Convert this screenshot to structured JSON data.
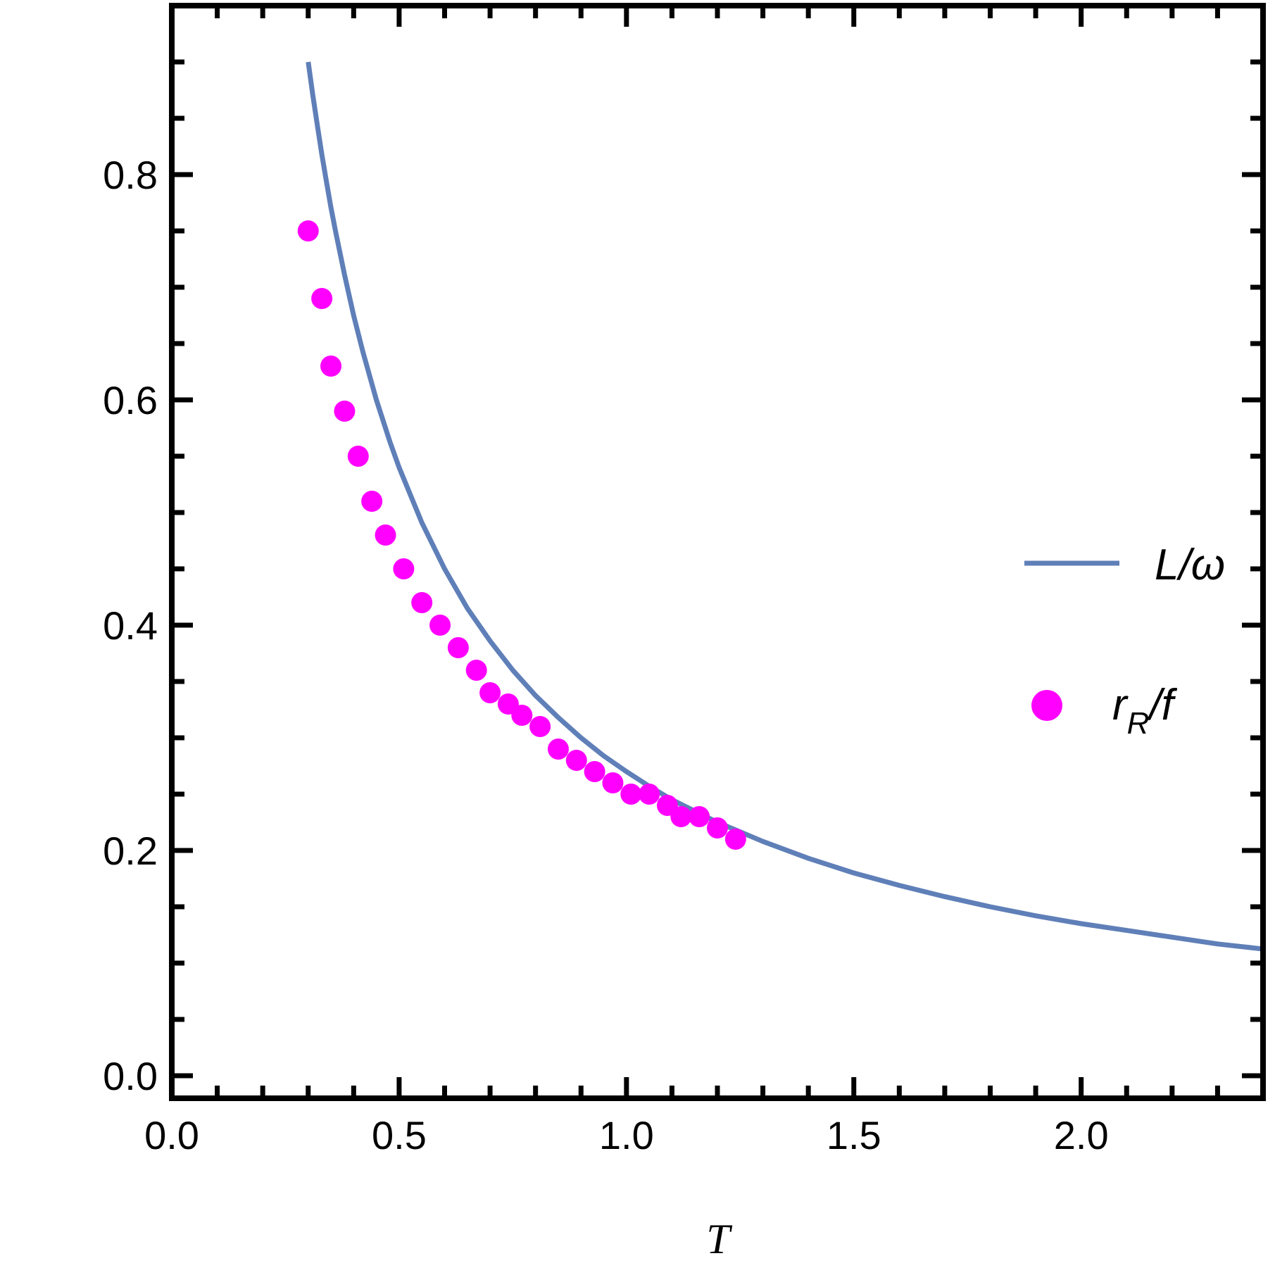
{
  "chart_data": {
    "type": "line",
    "xlabel": "T",
    "ylabel": "",
    "xlim": [
      0.0,
      2.4
    ],
    "ylim": [
      -0.02,
      0.95
    ],
    "x_ticks": [
      "0.0",
      "0.5",
      "1.0",
      "1.5",
      "2.0"
    ],
    "y_ticks": [
      "0.0",
      "0.2",
      "0.4",
      "0.6",
      "0.8"
    ],
    "grid": false,
    "legend_position": "right",
    "colors": {
      "line": "#5f7fb8",
      "points": "#ff00ff",
      "frame": "#000000"
    },
    "series": [
      {
        "name": "L/ω",
        "legend_main": "L/ω",
        "kind": "line",
        "x": [
          0.3,
          0.31,
          0.32,
          0.33,
          0.34,
          0.35,
          0.36,
          0.38,
          0.4,
          0.42,
          0.45,
          0.48,
          0.5,
          0.55,
          0.6,
          0.65,
          0.7,
          0.75,
          0.8,
          0.85,
          0.9,
          0.95,
          1.0,
          1.05,
          1.1,
          1.2,
          1.3,
          1.4,
          1.5,
          1.6,
          1.7,
          1.8,
          1.9,
          2.0,
          2.1,
          2.2,
          2.3,
          2.4
        ],
        "y": [
          0.9,
          0.871,
          0.844,
          0.818,
          0.794,
          0.771,
          0.75,
          0.711,
          0.675,
          0.643,
          0.6,
          0.5625,
          0.54,
          0.491,
          0.45,
          0.415,
          0.386,
          0.36,
          0.3375,
          0.318,
          0.3,
          0.284,
          0.27,
          0.257,
          0.245,
          0.225,
          0.208,
          0.193,
          0.18,
          0.169,
          0.159,
          0.15,
          0.142,
          0.135,
          0.129,
          0.123,
          0.117,
          0.1125
        ]
      },
      {
        "name": "rR/f",
        "legend_main": "r",
        "legend_sub": "R",
        "legend_tail": "/f",
        "kind": "scatter",
        "x": [
          0.3,
          0.33,
          0.35,
          0.38,
          0.41,
          0.44,
          0.47,
          0.51,
          0.55,
          0.59,
          0.63,
          0.67,
          0.7,
          0.74,
          0.77,
          0.81,
          0.85,
          0.89,
          0.93,
          0.97,
          1.01,
          1.05,
          1.09,
          1.12,
          1.16,
          1.2,
          1.24
        ],
        "y": [
          0.75,
          0.69,
          0.63,
          0.59,
          0.55,
          0.51,
          0.48,
          0.45,
          0.42,
          0.4,
          0.38,
          0.36,
          0.34,
          0.33,
          0.32,
          0.31,
          0.29,
          0.28,
          0.27,
          0.26,
          0.25,
          0.25,
          0.24,
          0.23,
          0.23,
          0.22,
          0.21
        ]
      }
    ]
  }
}
